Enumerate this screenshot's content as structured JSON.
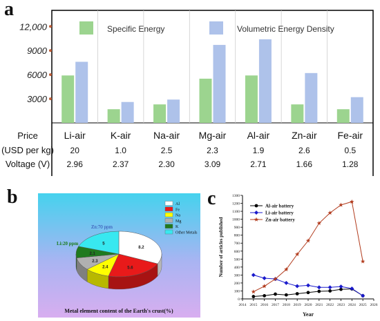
{
  "panel_labels": {
    "a": "a",
    "b": "b",
    "c": "c"
  },
  "chart_data": [
    {
      "type": "bar",
      "categories": [
        "Li-air",
        "K-air",
        "Na-air",
        "Mg-air",
        "Al-air",
        "Zn-air",
        "Fe-air"
      ],
      "series": [
        {
          "name": "Specific Energy",
          "color": "#9cd48f",
          "values": [
            5900,
            1700,
            2300,
            5500,
            5900,
            2300,
            1700
          ]
        },
        {
          "name": "Volumetric Energy Density",
          "color": "#aec2ea",
          "values": [
            7600,
            2600,
            2900,
            9700,
            10400,
            6200,
            3200
          ]
        }
      ],
      "ylim": [
        0,
        14000
      ],
      "yticks": [
        "3000",
        "6000",
        "9000",
        "12,000"
      ],
      "ytick_values": [
        3000,
        6000,
        9000,
        12000
      ],
      "table": {
        "rows": [
          {
            "label_lines": [
              "Price",
              "(USD per kg)"
            ],
            "values": [
              "20",
              "1.0",
              "2.5",
              "2.3",
              "1.9",
              "2.6",
              "0.5"
            ]
          },
          {
            "label_lines": [
              "Voltage (V)"
            ],
            "values": [
              "2.96",
              "2.37",
              "2.30",
              "3.09",
              "2.71",
              "1.66",
              "1.28"
            ]
          }
        ]
      }
    },
    {
      "type": "pie",
      "title": "Metal element content of the Earth's crust(%)",
      "labels": [
        "Al",
        "Fe",
        "Na",
        "Mg",
        "K",
        "Other Metals"
      ],
      "values": [
        8.2,
        5.6,
        2.4,
        2.3,
        2.1,
        5
      ],
      "value_labels": [
        "8.2",
        "5.6",
        "2.4",
        "2.3",
        "2.1",
        "5"
      ],
      "colors": [
        "#ffffff",
        "#e81a1a",
        "#ffff00",
        "#b0b0b0",
        "#1f7a1f",
        "#38e8f0"
      ],
      "annotations": [
        "Zn:70 ppm",
        "Li:20 ppm"
      ]
    },
    {
      "type": "line",
      "ylabel": "Number of articles published",
      "xlabel": "Year",
      "x": [
        2015,
        2016,
        2017,
        2018,
        2019,
        2020,
        2021,
        2022,
        2023,
        2024,
        2025
      ],
      "xlim": [
        2014,
        2026
      ],
      "ylim": [
        0,
        1300
      ],
      "yticks": [
        0,
        100,
        200,
        300,
        400,
        500,
        600,
        700,
        800,
        900,
        1000,
        1100,
        1200,
        1300
      ],
      "series": [
        {
          "name": "Al-air battery",
          "color": "#000000",
          "values": [
            30,
            40,
            60,
            50,
            65,
            80,
            95,
            100,
            120,
            125,
            40
          ]
        },
        {
          "name": "Li-air battery",
          "color": "#1a1acc",
          "values": [
            300,
            260,
            250,
            200,
            160,
            170,
            145,
            145,
            155,
            130,
            40
          ]
        },
        {
          "name": "Zn-air battery",
          "color": "#b23c1e",
          "values": [
            90,
            160,
            250,
            370,
            560,
            730,
            950,
            1080,
            1180,
            1220,
            470
          ]
        }
      ]
    }
  ]
}
